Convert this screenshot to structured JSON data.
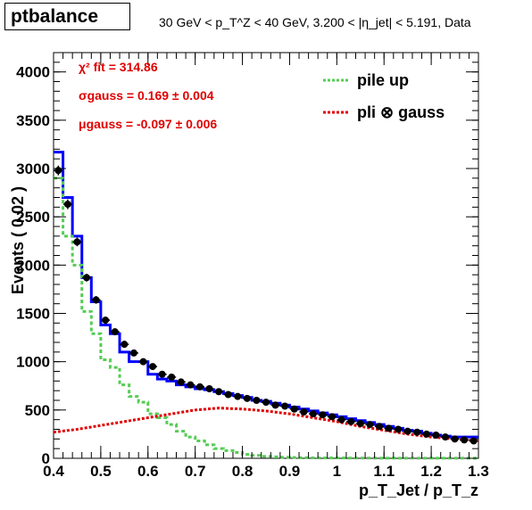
{
  "title": "ptbalance",
  "subtitle": "30 GeV < p_T^Z < 40 GeV, 3.200 < |η_jet| < 5.191, Data",
  "chart_data": {
    "type": "histogram",
    "xlabel": "p_T_Jet / p_T_z",
    "ylabel": "Events ( 0.02 )",
    "xlim": [
      0.4,
      1.3
    ],
    "ylim": [
      0,
      4200
    ],
    "xticks": [
      "0.4",
      "0.5",
      "0.6",
      "0.7",
      "0.8",
      "0.9",
      "1",
      "1.1",
      "1.2",
      "1.3"
    ],
    "yticks": [
      "0",
      "500",
      "1000",
      "1500",
      "2000",
      "2500",
      "3000",
      "3500",
      "4000"
    ],
    "grid": false,
    "legend_position": "top-right",
    "fit_text": {
      "chi2": "χ² fit = 314.86",
      "sigma": "σgauss = 0.169 ± 0.004",
      "mu": "μgauss = -0.097 ± 0.006"
    },
    "data_points": {
      "name": "Data",
      "x": [
        0.41,
        0.43,
        0.45,
        0.47,
        0.49,
        0.51,
        0.53,
        0.55,
        0.57,
        0.59,
        0.61,
        0.63,
        0.65,
        0.67,
        0.69,
        0.71,
        0.73,
        0.75,
        0.77,
        0.79,
        0.81,
        0.83,
        0.85,
        0.87,
        0.89,
        0.91,
        0.93,
        0.95,
        0.97,
        0.99,
        1.01,
        1.03,
        1.05,
        1.07,
        1.09,
        1.11,
        1.13,
        1.15,
        1.17,
        1.19,
        1.21,
        1.23,
        1.25,
        1.27,
        1.29
      ],
      "y": [
        2980,
        2630,
        2240,
        1870,
        1640,
        1430,
        1310,
        1180,
        1090,
        1000,
        950,
        870,
        840,
        790,
        760,
        740,
        720,
        690,
        660,
        640,
        620,
        600,
        580,
        550,
        540,
        510,
        480,
        460,
        450,
        430,
        400,
        380,
        360,
        350,
        330,
        310,
        300,
        280,
        270,
        250,
        240,
        220,
        200,
        190,
        180
      ],
      "err": [
        50,
        50,
        45,
        40,
        40,
        35,
        35,
        35,
        33,
        32,
        31,
        30,
        29,
        28,
        28,
        27,
        27,
        26,
        26,
        25,
        25,
        25,
        24,
        24,
        23,
        23,
        22,
        21,
        21,
        21,
        20,
        19,
        19,
        19,
        18,
        18,
        17,
        17,
        16,
        16,
        15,
        15,
        14,
        14,
        13
      ]
    },
    "series": [
      {
        "name": "pli ⊗ gauss",
        "style": "step",
        "color": "#0000ff",
        "edges": [
          0.4,
          0.42,
          0.44,
          0.46,
          0.48,
          0.5,
          0.52,
          0.54,
          0.56,
          0.58,
          0.6,
          0.62,
          0.64,
          0.66,
          0.68,
          0.7,
          0.72,
          0.74,
          0.76,
          0.78,
          0.8,
          0.82,
          0.84,
          0.86,
          0.88,
          0.9,
          0.92,
          0.94,
          0.96,
          0.98,
          1.0,
          1.02,
          1.04,
          1.06,
          1.08,
          1.1,
          1.12,
          1.14,
          1.16,
          1.18,
          1.2,
          1.22,
          1.24,
          1.26,
          1.28,
          1.3
        ],
        "values": [
          3170,
          2700,
          2300,
          1870,
          1620,
          1380,
          1290,
          1100,
          1000,
          1000,
          870,
          820,
          800,
          760,
          740,
          720,
          710,
          690,
          670,
          650,
          630,
          600,
          590,
          570,
          550,
          530,
          510,
          490,
          470,
          450,
          430,
          410,
          390,
          370,
          350,
          330,
          310,
          290,
          280,
          260,
          240,
          230,
          220,
          220,
          220
        ]
      },
      {
        "name": "pile up",
        "style": "step-dashed",
        "color": "#55cc55",
        "edges": [
          0.4,
          0.42,
          0.44,
          0.46,
          0.48,
          0.5,
          0.52,
          0.54,
          0.56,
          0.58,
          0.6,
          0.62,
          0.64,
          0.66,
          0.68,
          0.7,
          0.72,
          0.74,
          0.76,
          0.78,
          0.8,
          0.82,
          0.84,
          0.86,
          0.88,
          0.9,
          0.92,
          0.94,
          0.96,
          0.98,
          1.0,
          1.02,
          1.04,
          1.06,
          1.08,
          1.1,
          1.12,
          1.14,
          1.16,
          1.18,
          1.2,
          1.22,
          1.24,
          1.26,
          1.28,
          1.3
        ],
        "values": [
          2900,
          2300,
          2000,
          1520,
          1290,
          1020,
          940,
          760,
          640,
          580,
          460,
          420,
          350,
          280,
          220,
          180,
          140,
          100,
          80,
          60,
          40,
          30,
          20,
          15,
          10,
          8,
          6,
          5,
          4,
          3,
          3,
          2,
          2,
          2,
          1,
          1,
          1,
          1,
          1,
          1,
          1,
          1,
          1,
          1,
          1
        ]
      },
      {
        "name": "gauss",
        "style": "dashed-curve",
        "color": "#e00000",
        "x": [
          0.4,
          0.45,
          0.5,
          0.55,
          0.6,
          0.65,
          0.7,
          0.75,
          0.8,
          0.85,
          0.9,
          0.95,
          1.0,
          1.05,
          1.1,
          1.15,
          1.2,
          1.25,
          1.3
        ],
        "values": [
          270,
          300,
          340,
          380,
          420,
          460,
          500,
          520,
          510,
          490,
          460,
          420,
          380,
          330,
          290,
          250,
          220,
          200,
          180
        ]
      }
    ]
  },
  "legend": {
    "items": [
      {
        "label": "pile up",
        "color": "#55cc55"
      },
      {
        "label": "pli ⊗ gauss",
        "color": "#e00000"
      }
    ]
  }
}
